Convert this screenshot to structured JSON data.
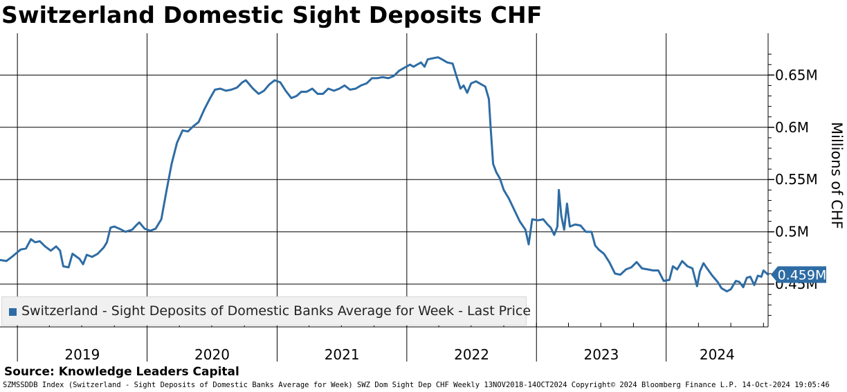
{
  "title": "Switzerland Domestic Sight Deposits CHF",
  "source": "Source: Knowledge Leaders Capital",
  "footer": "SZMSSDDB Index (Switzerland - Sight Deposits of Domestic Banks Average for Week) SWZ Dom Sight Dep CHF  Weekly 13NOV2018-14OCT2024 Copyright© 2024 Bloomberg Finance L.P. 14-Oct-2024 19:05:46",
  "legend_label": "Switzerland - Sight Deposits of Domestic Banks Average for Week - Last Price",
  "colors": {
    "series": "#2e6ca4",
    "grid": "#000000",
    "legend_bg": "#f0f0f0"
  },
  "chart_data": {
    "type": "line",
    "title": "Switzerland Domestic Sight Deposits CHF",
    "ylabel": "Millions of CHF",
    "xlabel": "",
    "x_ticks": [
      "2019",
      "2020",
      "2021",
      "2022",
      "2023",
      "2024"
    ],
    "y_ticks": [
      {
        "value": 0.45,
        "label": "0.45M"
      },
      {
        "value": 0.5,
        "label": "0.5M"
      },
      {
        "value": 0.55,
        "label": "0.55M"
      },
      {
        "value": 0.6,
        "label": "0.6M"
      },
      {
        "value": 0.65,
        "label": "0.65M"
      }
    ],
    "xlim": [
      "2018-11-13",
      "2024-10-14"
    ],
    "ylim": [
      0.409,
      0.69
    ],
    "grid": true,
    "legend_position": "bottom-left",
    "last_value_label": "0.459M",
    "series": [
      {
        "name": "Switzerland - Sight Deposits of Domestic Banks Average for Week - Last Price",
        "points": [
          [
            "2018-11-13",
            0.473
          ],
          [
            "2018-12-01",
            0.472
          ],
          [
            "2018-12-20",
            0.477
          ],
          [
            "2019-01-10",
            0.483
          ],
          [
            "2019-01-25",
            0.484
          ],
          [
            "2019-02-08",
            0.493
          ],
          [
            "2019-02-20",
            0.49
          ],
          [
            "2019-03-05",
            0.491
          ],
          [
            "2019-03-20",
            0.486
          ],
          [
            "2019-04-05",
            0.482
          ],
          [
            "2019-04-20",
            0.486
          ],
          [
            "2019-05-01",
            0.482
          ],
          [
            "2019-05-10",
            0.467
          ],
          [
            "2019-05-25",
            0.466
          ],
          [
            "2019-06-05",
            0.479
          ],
          [
            "2019-06-25",
            0.474
          ],
          [
            "2019-07-05",
            0.469
          ],
          [
            "2019-07-15",
            0.478
          ],
          [
            "2019-07-30",
            0.476
          ],
          [
            "2019-08-15",
            0.479
          ],
          [
            "2019-09-01",
            0.485
          ],
          [
            "2019-09-10",
            0.49
          ],
          [
            "2019-09-20",
            0.504
          ],
          [
            "2019-10-01",
            0.505
          ],
          [
            "2019-10-15",
            0.503
          ],
          [
            "2019-11-01",
            0.5
          ],
          [
            "2019-11-20",
            0.502
          ],
          [
            "2019-12-01",
            0.506
          ],
          [
            "2019-12-10",
            0.509
          ],
          [
            "2019-12-25",
            0.503
          ],
          [
            "2020-01-10",
            0.501
          ],
          [
            "2020-01-25",
            0.503
          ],
          [
            "2020-02-10",
            0.512
          ],
          [
            "2020-02-25",
            0.54
          ],
          [
            "2020-03-10",
            0.565
          ],
          [
            "2020-03-25",
            0.585
          ],
          [
            "2020-04-10",
            0.597
          ],
          [
            "2020-04-25",
            0.596
          ],
          [
            "2020-05-10",
            0.601
          ],
          [
            "2020-05-25",
            0.605
          ],
          [
            "2020-06-10",
            0.617
          ],
          [
            "2020-06-25",
            0.627
          ],
          [
            "2020-07-10",
            0.636
          ],
          [
            "2020-07-25",
            0.637
          ],
          [
            "2020-08-10",
            0.635
          ],
          [
            "2020-08-25",
            0.636
          ],
          [
            "2020-09-10",
            0.638
          ],
          [
            "2020-09-25",
            0.643
          ],
          [
            "2020-10-05",
            0.645
          ],
          [
            "2020-10-15",
            0.641
          ],
          [
            "2020-10-25",
            0.637
          ],
          [
            "2020-11-10",
            0.632
          ],
          [
            "2020-11-25",
            0.635
          ],
          [
            "2020-12-10",
            0.641
          ],
          [
            "2020-12-25",
            0.645
          ],
          [
            "2021-01-10",
            0.643
          ],
          [
            "2021-01-25",
            0.635
          ],
          [
            "2021-02-10",
            0.628
          ],
          [
            "2021-02-25",
            0.63
          ],
          [
            "2021-03-10",
            0.634
          ],
          [
            "2021-03-25",
            0.634
          ],
          [
            "2021-04-10",
            0.637
          ],
          [
            "2021-04-25",
            0.632
          ],
          [
            "2021-05-10",
            0.632
          ],
          [
            "2021-05-25",
            0.637
          ],
          [
            "2021-06-10",
            0.635
          ],
          [
            "2021-06-25",
            0.637
          ],
          [
            "2021-07-10",
            0.64
          ],
          [
            "2021-07-25",
            0.636
          ],
          [
            "2021-08-10",
            0.637
          ],
          [
            "2021-08-25",
            0.64
          ],
          [
            "2021-09-10",
            0.642
          ],
          [
            "2021-09-25",
            0.647
          ],
          [
            "2021-10-10",
            0.647
          ],
          [
            "2021-10-25",
            0.648
          ],
          [
            "2021-11-10",
            0.647
          ],
          [
            "2021-11-25",
            0.649
          ],
          [
            "2021-12-10",
            0.654
          ],
          [
            "2021-12-25",
            0.657
          ],
          [
            "2022-01-10",
            0.66
          ],
          [
            "2022-01-20",
            0.658
          ],
          [
            "2022-01-30",
            0.66
          ],
          [
            "2022-02-10",
            0.662
          ],
          [
            "2022-02-20",
            0.658
          ],
          [
            "2022-03-01",
            0.665
          ],
          [
            "2022-03-15",
            0.666
          ],
          [
            "2022-03-30",
            0.667
          ],
          [
            "2022-04-10",
            0.665
          ],
          [
            "2022-04-25",
            0.662
          ],
          [
            "2022-05-10",
            0.661
          ],
          [
            "2022-05-20",
            0.65
          ],
          [
            "2022-06-01",
            0.637
          ],
          [
            "2022-06-10",
            0.64
          ],
          [
            "2022-06-20",
            0.633
          ],
          [
            "2022-07-01",
            0.642
          ],
          [
            "2022-07-15",
            0.644
          ],
          [
            "2022-07-30",
            0.641
          ],
          [
            "2022-08-10",
            0.639
          ],
          [
            "2022-08-20",
            0.627
          ],
          [
            "2022-08-25",
            0.6
          ],
          [
            "2022-09-01",
            0.565
          ],
          [
            "2022-09-10",
            0.557
          ],
          [
            "2022-09-20",
            0.551
          ],
          [
            "2022-10-01",
            0.54
          ],
          [
            "2022-10-15",
            0.532
          ],
          [
            "2022-11-01",
            0.52
          ],
          [
            "2022-11-15",
            0.51
          ],
          [
            "2022-12-01",
            0.502
          ],
          [
            "2022-12-10",
            0.488
          ],
          [
            "2022-12-20",
            0.512
          ],
          [
            "2023-01-05",
            0.511
          ],
          [
            "2023-01-20",
            0.512
          ],
          [
            "2023-02-01",
            0.507
          ],
          [
            "2023-02-10",
            0.504
          ],
          [
            "2023-02-20",
            0.497
          ],
          [
            "2023-03-01",
            0.505
          ],
          [
            "2023-03-05",
            0.54
          ],
          [
            "2023-03-12",
            0.515
          ],
          [
            "2023-03-20",
            0.502
          ],
          [
            "2023-03-28",
            0.527
          ],
          [
            "2023-04-05",
            0.505
          ],
          [
            "2023-04-20",
            0.507
          ],
          [
            "2023-05-05",
            0.506
          ],
          [
            "2023-05-20",
            0.5
          ],
          [
            "2023-06-05",
            0.5
          ],
          [
            "2023-06-15",
            0.487
          ],
          [
            "2023-06-25",
            0.483
          ],
          [
            "2023-07-10",
            0.479
          ],
          [
            "2023-07-25",
            0.471
          ],
          [
            "2023-08-10",
            0.46
          ],
          [
            "2023-08-25",
            0.459
          ],
          [
            "2023-09-10",
            0.464
          ],
          [
            "2023-09-25",
            0.466
          ],
          [
            "2023-10-10",
            0.471
          ],
          [
            "2023-10-25",
            0.465
          ],
          [
            "2023-11-10",
            0.464
          ],
          [
            "2023-11-25",
            0.463
          ],
          [
            "2023-12-10",
            0.463
          ],
          [
            "2023-12-25",
            0.453
          ],
          [
            "2024-01-10",
            0.454
          ],
          [
            "2024-01-20",
            0.467
          ],
          [
            "2024-02-01",
            0.464
          ],
          [
            "2024-02-15",
            0.472
          ],
          [
            "2024-03-01",
            0.467
          ],
          [
            "2024-03-15",
            0.465
          ],
          [
            "2024-03-28",
            0.448
          ],
          [
            "2024-04-05",
            0.462
          ],
          [
            "2024-04-15",
            0.47
          ],
          [
            "2024-04-25",
            0.465
          ],
          [
            "2024-05-10",
            0.458
          ],
          [
            "2024-05-25",
            0.452
          ],
          [
            "2024-06-05",
            0.446
          ],
          [
            "2024-06-20",
            0.443
          ],
          [
            "2024-07-01",
            0.445
          ],
          [
            "2024-07-15",
            0.453
          ],
          [
            "2024-07-25",
            0.452
          ],
          [
            "2024-08-05",
            0.447
          ],
          [
            "2024-08-15",
            0.456
          ],
          [
            "2024-08-25",
            0.457
          ],
          [
            "2024-09-05",
            0.449
          ],
          [
            "2024-09-15",
            0.458
          ],
          [
            "2024-09-25",
            0.457
          ],
          [
            "2024-10-01",
            0.463
          ],
          [
            "2024-10-14",
            0.459
          ]
        ]
      }
    ]
  }
}
